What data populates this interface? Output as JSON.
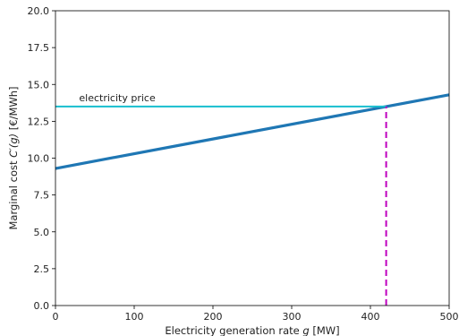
{
  "chart_data": {
    "type": "line",
    "title": "",
    "xlabel": {
      "text": "Electricity generation rate ",
      "var": "g",
      "unit": " [MW]"
    },
    "ylabel": {
      "text": "Marginal cost ",
      "var": "C′(g)",
      "unit": " [€/MWh]"
    },
    "xlim": [
      0,
      500
    ],
    "ylim": [
      0.0,
      20.0
    ],
    "xticks": [
      0,
      100,
      200,
      300,
      400,
      500
    ],
    "xtick_labels": [
      "0",
      "100",
      "200",
      "300",
      "400",
      "500"
    ],
    "yticks": [
      0.0,
      2.5,
      5.0,
      7.5,
      10.0,
      12.5,
      15.0,
      17.5,
      20.0
    ],
    "ytick_labels": [
      "0.0",
      "2.5",
      "5.0",
      "7.5",
      "10.0",
      "12.5",
      "15.0",
      "17.5",
      "20.0"
    ],
    "grid": false,
    "series": [
      {
        "x": [
          0,
          500
        ],
        "y": [
          9.3,
          14.3
        ],
        "color": "#1f77b4",
        "style": "solid"
      },
      {
        "x": [
          0,
          420
        ],
        "y": [
          13.5,
          13.5
        ],
        "color": "#17becf",
        "style": "solid"
      },
      {
        "x": [
          420,
          420
        ],
        "y": [
          0.0,
          13.5
        ],
        "color": "#bf00bf",
        "style": "dashed"
      }
    ],
    "annotations": [
      {
        "text": "electricity price",
        "x": 30,
        "y": 13.5
      }
    ]
  }
}
